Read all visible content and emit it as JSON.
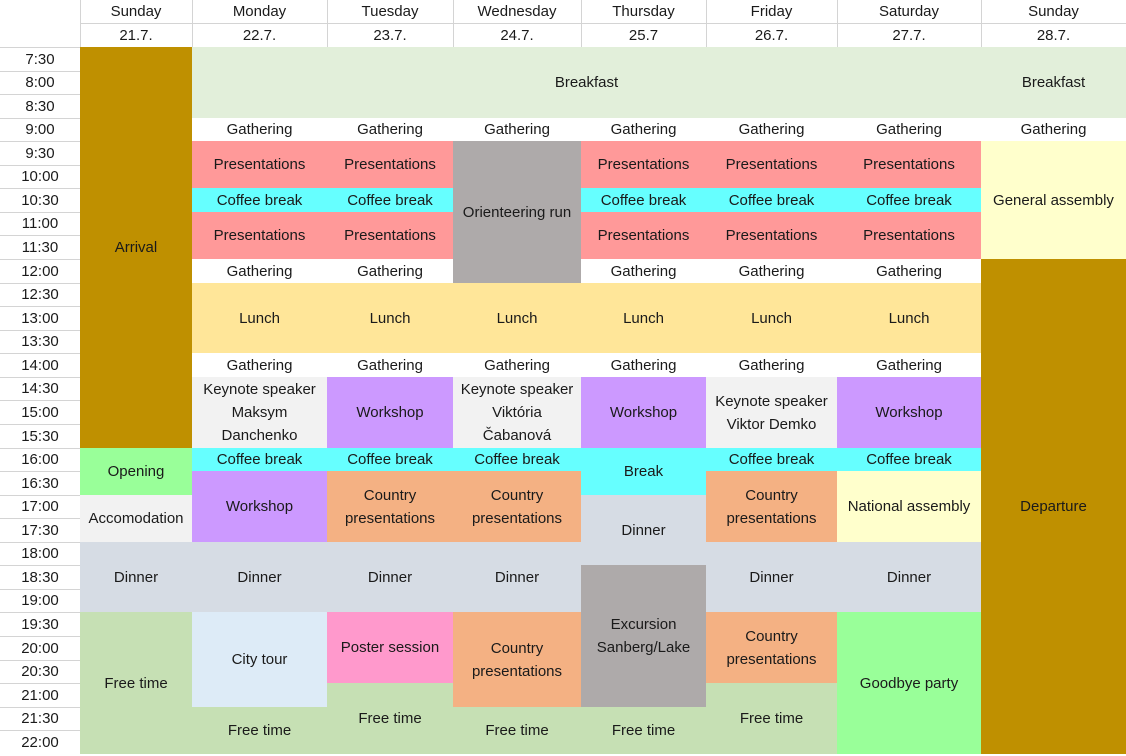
{
  "colors": {
    "arrival": "#bf9000",
    "breakfast": "#e2efda",
    "gathering": "#ffffff",
    "presentations": "#ff9999",
    "coffee": "#66ffff",
    "orienteering": "#aeaaaa",
    "lunch": "#ffe699",
    "keynote": "#f2f2f2",
    "workshop": "#cc99ff",
    "opening": "#99ff99",
    "accomodation": "#f2f2f2",
    "country": "#f4b183",
    "dinner": "#d6dce4",
    "free": "#c6e0b4",
    "citytour": "#ddebf7",
    "poster": "#ff99cc",
    "excursion": "#aeaaaa",
    "goodbye": "#99ff99",
    "assembly": "#ffffcc",
    "departure": "#bf9000"
  },
  "schedule": {
    "days": [
      {
        "name": "Sunday",
        "date": "21.7."
      },
      {
        "name": "Monday",
        "date": "22.7."
      },
      {
        "name": "Tuesday",
        "date": "23.7."
      },
      {
        "name": "Wednesday",
        "date": "24.7."
      },
      {
        "name": "Thursday",
        "date": "25.7"
      },
      {
        "name": "Friday",
        "date": "26.7."
      },
      {
        "name": "Saturday",
        "date": "27.7."
      },
      {
        "name": "Sunday",
        "date": "28.7."
      }
    ],
    "times": [
      "7:30",
      "8:00",
      "8:30",
      "9:00",
      "9:30",
      "10:00",
      "10:30",
      "11:00",
      "11:30",
      "12:00",
      "12:30",
      "13:00",
      "13:30",
      "14:00",
      "14:30",
      "15:00",
      "15:30",
      "16:00",
      "16:30",
      "17:00",
      "17:30",
      "18:00",
      "18:30",
      "19:00",
      "19:30",
      "20:00",
      "20:30",
      "21:00",
      "21:30",
      "22:00"
    ],
    "events": [
      {
        "label": "Arrival",
        "color": "arrival",
        "day": 0,
        "start": 0,
        "end": 17,
        "span": 1
      },
      {
        "label": "Opening",
        "color": "opening",
        "day": 0,
        "start": 17,
        "end": 19,
        "span": 1
      },
      {
        "label": "Accomodation",
        "color": "accomodation",
        "day": 0,
        "start": 19,
        "end": 21,
        "span": 1
      },
      {
        "label": "Dinner",
        "color": "dinner",
        "day": 0,
        "start": 21,
        "end": 24,
        "span": 1
      },
      {
        "label": "Free time",
        "color": "free",
        "day": 0,
        "start": 24,
        "end": 30,
        "span": 1
      },
      {
        "label": "Breakfast",
        "color": "breakfast",
        "day": 1,
        "start": 0,
        "end": 3,
        "span": 6
      },
      {
        "label": "Gathering",
        "color": "gathering",
        "day": 1,
        "start": 3,
        "end": 4,
        "span": 1
      },
      {
        "label": "Gathering",
        "color": "gathering",
        "day": 2,
        "start": 3,
        "end": 4,
        "span": 1
      },
      {
        "label": "Gathering",
        "color": "gathering",
        "day": 3,
        "start": 3,
        "end": 4,
        "span": 1
      },
      {
        "label": "Gathering",
        "color": "gathering",
        "day": 4,
        "start": 3,
        "end": 4,
        "span": 1
      },
      {
        "label": "Gathering",
        "color": "gathering",
        "day": 5,
        "start": 3,
        "end": 4,
        "span": 1
      },
      {
        "label": "Gathering",
        "color": "gathering",
        "day": 6,
        "start": 3,
        "end": 4,
        "span": 1
      },
      {
        "label": "Presentations",
        "color": "presentations",
        "day": 1,
        "start": 4,
        "end": 6,
        "span": 1
      },
      {
        "label": "Coffee break",
        "color": "coffee",
        "day": 1,
        "start": 6,
        "end": 7,
        "span": 1
      },
      {
        "label": "Presentations",
        "color": "presentations",
        "day": 1,
        "start": 7,
        "end": 9,
        "span": 1
      },
      {
        "label": "Gathering",
        "color": "gathering",
        "day": 1,
        "start": 9,
        "end": 10,
        "span": 1
      },
      {
        "label": "Presentations",
        "color": "presentations",
        "day": 2,
        "start": 4,
        "end": 6,
        "span": 1
      },
      {
        "label": "Coffee break",
        "color": "coffee",
        "day": 2,
        "start": 6,
        "end": 7,
        "span": 1
      },
      {
        "label": "Presentations",
        "color": "presentations",
        "day": 2,
        "start": 7,
        "end": 9,
        "span": 1
      },
      {
        "label": "Gathering",
        "color": "gathering",
        "day": 2,
        "start": 9,
        "end": 10,
        "span": 1
      },
      {
        "label": "Orienteering run",
        "color": "orienteering",
        "day": 3,
        "start": 4,
        "end": 10,
        "span": 1
      },
      {
        "label": "Presentations",
        "color": "presentations",
        "day": 4,
        "start": 4,
        "end": 6,
        "span": 1
      },
      {
        "label": "Coffee break",
        "color": "coffee",
        "day": 4,
        "start": 6,
        "end": 7,
        "span": 1
      },
      {
        "label": "Presentations",
        "color": "presentations",
        "day": 4,
        "start": 7,
        "end": 9,
        "span": 1
      },
      {
        "label": "Gathering",
        "color": "gathering",
        "day": 4,
        "start": 9,
        "end": 10,
        "span": 1
      },
      {
        "label": "Presentations",
        "color": "presentations",
        "day": 5,
        "start": 4,
        "end": 6,
        "span": 1
      },
      {
        "label": "Coffee break",
        "color": "coffee",
        "day": 5,
        "start": 6,
        "end": 7,
        "span": 1
      },
      {
        "label": "Presentations",
        "color": "presentations",
        "day": 5,
        "start": 7,
        "end": 9,
        "span": 1
      },
      {
        "label": "Gathering",
        "color": "gathering",
        "day": 5,
        "start": 9,
        "end": 10,
        "span": 1
      },
      {
        "label": "Presentations",
        "color": "presentations",
        "day": 6,
        "start": 4,
        "end": 6,
        "span": 1
      },
      {
        "label": "Coffee break",
        "color": "coffee",
        "day": 6,
        "start": 6,
        "end": 7,
        "span": 1
      },
      {
        "label": "Presentations",
        "color": "presentations",
        "day": 6,
        "start": 7,
        "end": 9,
        "span": 1
      },
      {
        "label": "Gathering",
        "color": "gathering",
        "day": 6,
        "start": 9,
        "end": 10,
        "span": 1
      },
      {
        "label": "Lunch",
        "color": "lunch",
        "day": 1,
        "start": 10,
        "end": 13,
        "span": 1
      },
      {
        "label": "Lunch",
        "color": "lunch",
        "day": 2,
        "start": 10,
        "end": 13,
        "span": 1
      },
      {
        "label": "Lunch",
        "color": "lunch",
        "day": 3,
        "start": 10,
        "end": 13,
        "span": 1
      },
      {
        "label": "Lunch",
        "color": "lunch",
        "day": 4,
        "start": 10,
        "end": 13,
        "span": 1
      },
      {
        "label": "Lunch",
        "color": "lunch",
        "day": 5,
        "start": 10,
        "end": 13,
        "span": 1
      },
      {
        "label": "Lunch",
        "color": "lunch",
        "day": 6,
        "start": 10,
        "end": 13,
        "span": 1
      },
      {
        "label": "Gathering",
        "color": "gathering",
        "day": 1,
        "start": 13,
        "end": 14,
        "span": 1
      },
      {
        "label": "Gathering",
        "color": "gathering",
        "day": 2,
        "start": 13,
        "end": 14,
        "span": 1
      },
      {
        "label": "Gathering",
        "color": "gathering",
        "day": 3,
        "start": 13,
        "end": 14,
        "span": 1
      },
      {
        "label": "Gathering",
        "color": "gathering",
        "day": 4,
        "start": 13,
        "end": 14,
        "span": 1
      },
      {
        "label": "Gathering",
        "color": "gathering",
        "day": 5,
        "start": 13,
        "end": 14,
        "span": 1
      },
      {
        "label": "Gathering",
        "color": "gathering",
        "day": 6,
        "start": 13,
        "end": 14,
        "span": 1
      },
      {
        "label": "Keynote speaker\nMaksym\nDanchenko",
        "color": "keynote",
        "day": 1,
        "start": 14,
        "end": 17,
        "span": 1
      },
      {
        "label": "Workshop",
        "color": "workshop",
        "day": 2,
        "start": 14,
        "end": 17,
        "span": 1
      },
      {
        "label": "Keynote speaker\nViktória\nČabanová",
        "color": "keynote",
        "day": 3,
        "start": 14,
        "end": 17,
        "span": 1
      },
      {
        "label": "Workshop",
        "color": "workshop",
        "day": 4,
        "start": 14,
        "end": 17,
        "span": 1
      },
      {
        "label": "Keynote speaker\nViktor Demko",
        "color": "keynote",
        "day": 5,
        "start": 14,
        "end": 17,
        "span": 1
      },
      {
        "label": "Workshop",
        "color": "workshop",
        "day": 6,
        "start": 14,
        "end": 17,
        "span": 1
      },
      {
        "label": "Coffee break",
        "color": "coffee",
        "day": 1,
        "start": 17,
        "end": 18,
        "span": 1
      },
      {
        "label": "Workshop",
        "color": "workshop",
        "day": 1,
        "start": 18,
        "end": 21,
        "span": 1
      },
      {
        "label": "Coffee break",
        "color": "coffee",
        "day": 2,
        "start": 17,
        "end": 18,
        "span": 1
      },
      {
        "label": "Country\npresentations",
        "color": "country",
        "day": 2,
        "start": 18,
        "end": 21,
        "span": 1
      },
      {
        "label": "Coffee break",
        "color": "coffee",
        "day": 3,
        "start": 17,
        "end": 18,
        "span": 1
      },
      {
        "label": "Country\npresentations",
        "color": "country",
        "day": 3,
        "start": 18,
        "end": 21,
        "span": 1
      },
      {
        "label": "Break",
        "color": "coffee",
        "day": 4,
        "start": 17,
        "end": 19,
        "span": 1
      },
      {
        "label": "Dinner",
        "color": "dinner",
        "day": 4,
        "start": 19,
        "end": 22,
        "span": 1
      },
      {
        "label": "Coffee break",
        "color": "coffee",
        "day": 5,
        "start": 17,
        "end": 18,
        "span": 1
      },
      {
        "label": "Country\npresentations",
        "color": "country",
        "day": 5,
        "start": 18,
        "end": 21,
        "span": 1
      },
      {
        "label": "Coffee break",
        "color": "coffee",
        "day": 6,
        "start": 17,
        "end": 18,
        "span": 1
      },
      {
        "label": "National assembly",
        "color": "assembly",
        "day": 6,
        "start": 18,
        "end": 21,
        "span": 1
      },
      {
        "label": "Dinner",
        "color": "dinner",
        "day": 1,
        "start": 21,
        "end": 24,
        "span": 1
      },
      {
        "label": "Dinner",
        "color": "dinner",
        "day": 2,
        "start": 21,
        "end": 24,
        "span": 1
      },
      {
        "label": "Dinner",
        "color": "dinner",
        "day": 3,
        "start": 21,
        "end": 24,
        "span": 1
      },
      {
        "label": "Excursion\nSanberg/Lake",
        "color": "excursion",
        "day": 4,
        "start": 22,
        "end": 28,
        "span": 1
      },
      {
        "label": "Dinner",
        "color": "dinner",
        "day": 5,
        "start": 21,
        "end": 24,
        "span": 1
      },
      {
        "label": "Dinner",
        "color": "dinner",
        "day": 6,
        "start": 21,
        "end": 24,
        "span": 1
      },
      {
        "label": "City tour",
        "color": "citytour",
        "day": 1,
        "start": 24,
        "end": 28,
        "span": 1
      },
      {
        "label": "Free time",
        "color": "free",
        "day": 1,
        "start": 28,
        "end": 30,
        "span": 1
      },
      {
        "label": "Poster session",
        "color": "poster",
        "day": 2,
        "start": 24,
        "end": 27,
        "span": 1
      },
      {
        "label": "Free time",
        "color": "free",
        "day": 2,
        "start": 27,
        "end": 30,
        "span": 1
      },
      {
        "label": "Country\npresentations",
        "color": "country",
        "day": 3,
        "start": 24,
        "end": 28,
        "span": 1
      },
      {
        "label": "Free time",
        "color": "free",
        "day": 3,
        "start": 28,
        "end": 30,
        "span": 1
      },
      {
        "label": "Free time",
        "color": "free",
        "day": 4,
        "start": 28,
        "end": 30,
        "span": 1
      },
      {
        "label": "Country\npresentations",
        "color": "country",
        "day": 5,
        "start": 24,
        "end": 27,
        "span": 1
      },
      {
        "label": "Free time",
        "color": "free",
        "day": 5,
        "start": 27,
        "end": 30,
        "span": 1
      },
      {
        "label": "Goodbye party",
        "color": "goodbye",
        "day": 6,
        "start": 24,
        "end": 30,
        "span": 1
      },
      {
        "label": "Breakfast",
        "color": "breakfast",
        "day": 7,
        "start": 0,
        "end": 3,
        "span": 1
      },
      {
        "label": "Gathering",
        "color": "gathering",
        "day": 7,
        "start": 3,
        "end": 4,
        "span": 1
      },
      {
        "label": "General assembly",
        "color": "assembly",
        "day": 7,
        "start": 4,
        "end": 9,
        "span": 1
      },
      {
        "label": "Departure",
        "color": "departure",
        "day": 7,
        "start": 9,
        "end": 30,
        "span": 1
      }
    ]
  }
}
